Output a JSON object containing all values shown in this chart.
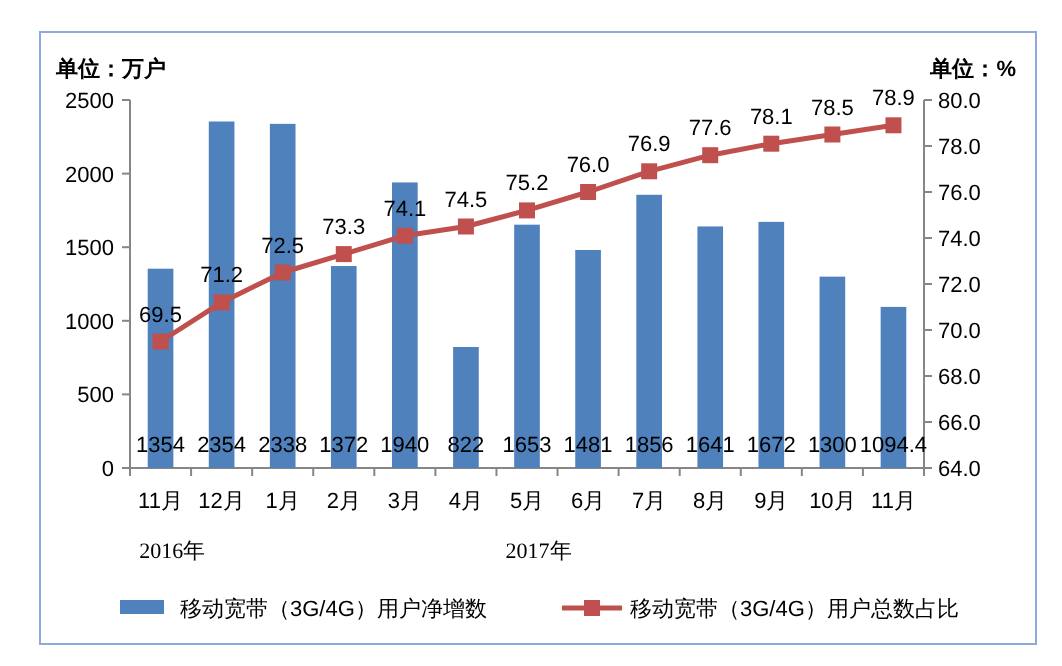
{
  "chart_data": {
    "type": "bar",
    "categories": [
      "11月",
      "12月",
      "1月",
      "2月",
      "3月",
      "4月",
      "5月",
      "6月",
      "7月",
      "8月",
      "9月",
      "10月",
      "11月"
    ],
    "ylabel": "单位：万户",
    "y2label": "单位：%",
    "ylim": [
      0,
      2500
    ],
    "yticks": [
      0,
      500,
      1000,
      1500,
      2000,
      2500
    ],
    "y2lim": [
      64,
      80
    ],
    "y2ticks": [
      {
        "value": 64,
        "label": "64.0"
      },
      {
        "value": 66,
        "label": "66.0"
      },
      {
        "value": 68,
        "label": "68.0"
      },
      {
        "value": 70,
        "label": "70.0"
      },
      {
        "value": 72,
        "label": "72.0"
      },
      {
        "value": 74,
        "label": "74.0"
      },
      {
        "value": 76,
        "label": "76.0"
      },
      {
        "value": 78,
        "label": "78.0"
      },
      {
        "value": 80,
        "label": "80.0"
      }
    ],
    "annotations": [
      "2016年",
      "2017年"
    ],
    "legend": "bottom",
    "grid": false,
    "series": [
      {
        "name": "移动宽带（3G/4G）用户净增数",
        "color": "#4f81bd",
        "values": [
          1354,
          2354,
          2338,
          1372,
          1940,
          822,
          1653,
          1481,
          1856,
          1641,
          1672,
          1300,
          1094.4
        ],
        "value_labels": [
          "1354",
          "2354",
          "2338",
          "1372",
          "1940",
          "822",
          "1653",
          "1481",
          "1856",
          "1641",
          "1672",
          "1300",
          "1094.4"
        ]
      },
      {
        "name": "移动宽带（3G/4G）用户总数占比",
        "type": "line",
        "axis": "y2",
        "marker": "square",
        "color": "#c0504d",
        "values": [
          69.5,
          71.2,
          72.5,
          73.3,
          74.1,
          74.5,
          75.2,
          76.0,
          76.9,
          77.6,
          78.1,
          78.5,
          78.9
        ],
        "value_labels": [
          "69.5",
          "71.2",
          "72.5",
          "73.3",
          "74.1",
          "74.5",
          "75.2",
          "76.0",
          "76.9",
          "77.6",
          "78.1",
          "78.5",
          "78.9"
        ]
      }
    ]
  }
}
